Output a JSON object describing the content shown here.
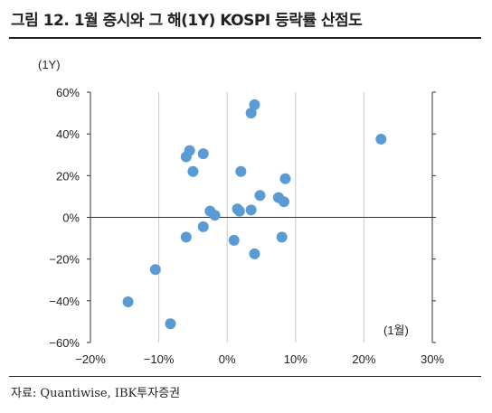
{
  "title": "그림 12. 1월 증시와 그 해(1Y) KOSPI 등락률 산점도",
  "source": "자료: Quantiwise, IBK투자증권",
  "chart_data": {
    "type": "scatter",
    "title": "그림 12. 1월 증시와 그 해(1Y) KOSPI 등락률 산점도",
    "xlabel": "(1월)",
    "ylabel": "(1Y)",
    "xlim": [
      -20,
      30
    ],
    "ylim": [
      -60,
      60
    ],
    "x_ticks": [
      -20,
      -10,
      0,
      10,
      20,
      30
    ],
    "y_ticks": [
      -60,
      -40,
      -20,
      0,
      20,
      40,
      60
    ],
    "x_tick_labels": [
      "−20%",
      "−10%",
      "0%",
      "10%",
      "20%",
      "30%"
    ],
    "y_tick_labels": [
      "−60%",
      "−40%",
      "−20%",
      "0%",
      "20%",
      "40%",
      "60%"
    ],
    "grid": "vertical",
    "marker_color": "#5b9bd5",
    "points": [
      {
        "x": -14.5,
        "y": -40.5
      },
      {
        "x": -10.5,
        "y": -25
      },
      {
        "x": -8.3,
        "y": -51
      },
      {
        "x": -6,
        "y": 29
      },
      {
        "x": -5.5,
        "y": 32
      },
      {
        "x": -5,
        "y": 22
      },
      {
        "x": -6,
        "y": -9.5
      },
      {
        "x": -3.5,
        "y": 30.5
      },
      {
        "x": -3.5,
        "y": -4.5
      },
      {
        "x": -2.5,
        "y": 3
      },
      {
        "x": -1.8,
        "y": 1
      },
      {
        "x": 1,
        "y": -11
      },
      {
        "x": 1.5,
        "y": 4
      },
      {
        "x": 1.8,
        "y": 3
      },
      {
        "x": 2,
        "y": 22
      },
      {
        "x": 3.5,
        "y": 50
      },
      {
        "x": 3.5,
        "y": 3.5
      },
      {
        "x": 4,
        "y": 54
      },
      {
        "x": 4,
        "y": -17.5
      },
      {
        "x": 4.8,
        "y": 10.5
      },
      {
        "x": 7.5,
        "y": 9.5
      },
      {
        "x": 8,
        "y": -9.5
      },
      {
        "x": 8.3,
        "y": 7.5
      },
      {
        "x": 8.5,
        "y": 18.5
      },
      {
        "x": 22.5,
        "y": 37.5
      }
    ]
  }
}
